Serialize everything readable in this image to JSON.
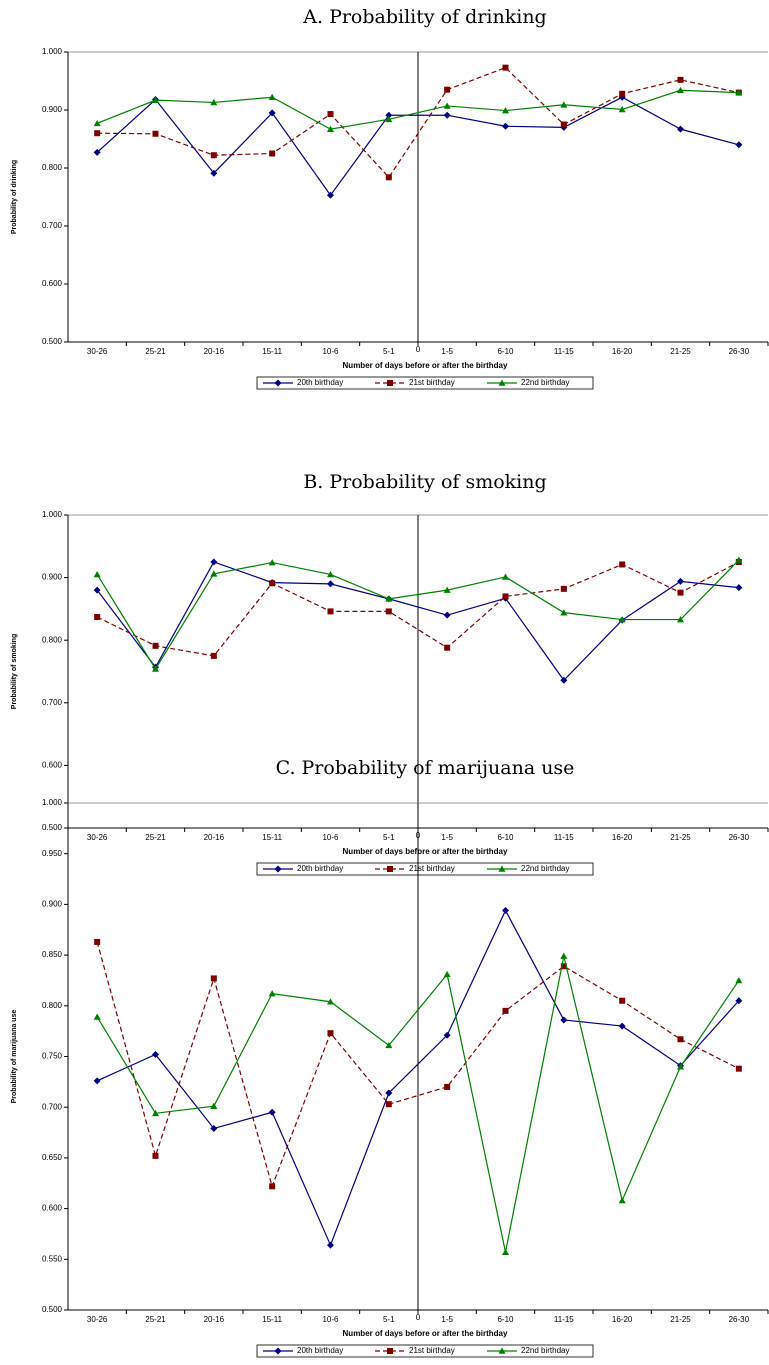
{
  "chart_data": [
    {
      "type": "line",
      "title": "A.  Probability of drinking",
      "y_label": "Probability of drinking",
      "x_label": "Number of days before or after the birthday",
      "categories": [
        "30-26",
        "25-21",
        "20-16",
        "15-11",
        "10-6",
        "5-1",
        "1-5",
        "6-10",
        "11-15",
        "16-20",
        "21-25",
        "26-30"
      ],
      "divider_label": "0",
      "ylim": [
        0.5,
        1.0
      ],
      "yticks": [
        {
          "value": 0.5,
          "label": "0.500"
        },
        {
          "value": 0.6,
          "label": "0.600"
        },
        {
          "value": 0.7,
          "label": "0.700"
        },
        {
          "value": 0.8,
          "label": "0.800"
        },
        {
          "value": 0.9,
          "label": "0.900"
        },
        {
          "value": 1.0,
          "label": "1.000"
        }
      ],
      "series": [
        {
          "name": "20th birthday",
          "color": "#000080",
          "marker": "diamond",
          "dashed": false,
          "values": [
            0.827,
            0.918,
            0.791,
            0.895,
            0.753,
            0.891,
            0.891,
            0.872,
            0.87,
            0.922,
            0.867,
            0.84
          ]
        },
        {
          "name": "21st birthday",
          "color": "#800000",
          "marker": "square",
          "dashed": true,
          "values": [
            0.86,
            0.859,
            0.822,
            0.825,
            0.893,
            0.784,
            0.935,
            0.973,
            0.875,
            0.928,
            0.952,
            0.93
          ]
        },
        {
          "name": "22nd birthday",
          "color": "#008000",
          "marker": "triangle",
          "dashed": false,
          "values": [
            0.877,
            0.917,
            0.913,
            0.922,
            0.867,
            0.884,
            0.907,
            0.899,
            0.909,
            0.901,
            0.934,
            0.93
          ]
        }
      ]
    },
    {
      "type": "line",
      "title": "B.  Probability of smoking",
      "y_label": "Probability of smoking",
      "x_label": "Number of days before or after the birthday",
      "categories": [
        "30-26",
        "25-21",
        "20-16",
        "15-11",
        "10-6",
        "5-1",
        "1-5",
        "6-10",
        "11-15",
        "16-20",
        "21-25",
        "26-30"
      ],
      "divider_label": "0",
      "ylim": [
        0.5,
        1.0
      ],
      "yticks": [
        {
          "value": 0.5,
          "label": "0.500"
        },
        {
          "value": 0.6,
          "label": "0.600"
        },
        {
          "value": 0.7,
          "label": "0.700"
        },
        {
          "value": 0.8,
          "label": "0.800"
        },
        {
          "value": 0.9,
          "label": "0.900"
        },
        {
          "value": 1.0,
          "label": "1.000"
        }
      ],
      "series": [
        {
          "name": "20th birthday",
          "color": "#000080",
          "marker": "diamond",
          "dashed": false,
          "values": [
            0.88,
            0.757,
            0.925,
            0.892,
            0.89,
            0.866,
            0.84,
            0.867,
            0.736,
            0.832,
            0.894,
            0.884
          ]
        },
        {
          "name": "21st birthday",
          "color": "#800000",
          "marker": "square",
          "dashed": true,
          "values": [
            0.837,
            0.791,
            0.775,
            0.891,
            0.846,
            0.846,
            0.788,
            0.87,
            0.882,
            0.921,
            0.876,
            0.925
          ]
        },
        {
          "name": "22nd birthday",
          "color": "#008000",
          "marker": "triangle",
          "dashed": false,
          "values": [
            0.905,
            0.754,
            0.906,
            0.924,
            0.905,
            0.866,
            0.88,
            0.901,
            0.844,
            0.833,
            0.833,
            0.928
          ]
        }
      ]
    },
    {
      "type": "line",
      "title": "C.  Probability of marijuana use",
      "y_label": "Probability of marijuana use",
      "x_label": "Number of days before or after the birthday",
      "categories": [
        "30-26",
        "25-21",
        "20-16",
        "15-11",
        "10-6",
        "5-1",
        "1-5",
        "6-10",
        "11-15",
        "16-20",
        "21-25",
        "26-30"
      ],
      "divider_label": "0",
      "ylim": [
        0.5,
        1.0
      ],
      "yticks": [
        {
          "value": 0.5,
          "label": "0.500"
        },
        {
          "value": 0.55,
          "label": "0.550"
        },
        {
          "value": 0.6,
          "label": "0.600"
        },
        {
          "value": 0.65,
          "label": "0.650"
        },
        {
          "value": 0.7,
          "label": "0.700"
        },
        {
          "value": 0.75,
          "label": "0.750"
        },
        {
          "value": 0.8,
          "label": "0.800"
        },
        {
          "value": 0.85,
          "label": "0.850"
        },
        {
          "value": 0.9,
          "label": "0.900"
        },
        {
          "value": 0.95,
          "label": "0.950"
        },
        {
          "value": 1.0,
          "label": "1.000"
        }
      ],
      "series": [
        {
          "name": "20th birthday",
          "color": "#000080",
          "marker": "diamond",
          "dashed": false,
          "values": [
            0.726,
            0.752,
            0.679,
            0.695,
            0.564,
            0.714,
            0.771,
            0.894,
            0.786,
            0.78,
            0.741,
            0.805
          ]
        },
        {
          "name": "21st birthday",
          "color": "#800000",
          "marker": "square",
          "dashed": true,
          "values": [
            0.863,
            0.652,
            0.827,
            0.622,
            0.773,
            0.703,
            0.72,
            0.795,
            0.839,
            0.805,
            0.767,
            0.738
          ]
        },
        {
          "name": "22nd birthday",
          "color": "#008000",
          "marker": "triangle",
          "dashed": false,
          "values": [
            0.789,
            0.694,
            0.701,
            0.812,
            0.804,
            0.761,
            0.831,
            0.557,
            0.849,
            0.608,
            0.74,
            0.825
          ]
        }
      ]
    }
  ]
}
